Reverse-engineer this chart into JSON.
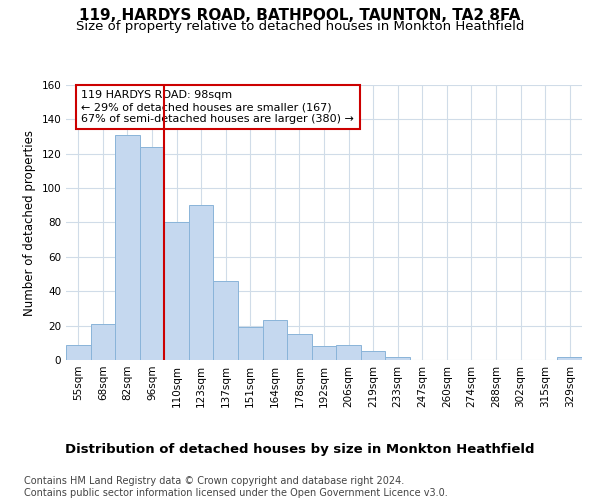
{
  "title": "119, HARDYS ROAD, BATHPOOL, TAUNTON, TA2 8FA",
  "subtitle": "Size of property relative to detached houses in Monkton Heathfield",
  "xlabel": "Distribution of detached houses by size in Monkton Heathfield",
  "ylabel": "Number of detached properties",
  "categories": [
    "55sqm",
    "68sqm",
    "82sqm",
    "96sqm",
    "110sqm",
    "123sqm",
    "137sqm",
    "151sqm",
    "164sqm",
    "178sqm",
    "192sqm",
    "206sqm",
    "219sqm",
    "233sqm",
    "247sqm",
    "260sqm",
    "274sqm",
    "288sqm",
    "302sqm",
    "315sqm",
    "329sqm"
  ],
  "values": [
    9,
    21,
    131,
    124,
    80,
    90,
    46,
    19,
    23,
    15,
    8,
    9,
    5,
    2,
    0,
    0,
    0,
    0,
    0,
    0,
    2
  ],
  "bar_color": "#c5d8ef",
  "bar_edge_color": "#8ab4d9",
  "vline_x": 3.5,
  "vline_color": "#cc0000",
  "annotation_text": "119 HARDYS ROAD: 98sqm\n← 29% of detached houses are smaller (167)\n67% of semi-detached houses are larger (380) →",
  "annotation_box_color": "#ffffff",
  "annotation_box_edge": "#cc0000",
  "ylim": [
    0,
    160
  ],
  "yticks": [
    0,
    20,
    40,
    60,
    80,
    100,
    120,
    140,
    160
  ],
  "footer": "Contains HM Land Registry data © Crown copyright and database right 2024.\nContains public sector information licensed under the Open Government Licence v3.0.",
  "bg_color": "#ffffff",
  "plot_bg": "#ffffff",
  "grid_color": "#d0dce8",
  "title_fontsize": 11,
  "subtitle_fontsize": 9.5,
  "xlabel_fontsize": 9.5,
  "ylabel_fontsize": 8.5,
  "tick_fontsize": 7.5,
  "footer_fontsize": 7,
  "ann_fontsize": 8
}
